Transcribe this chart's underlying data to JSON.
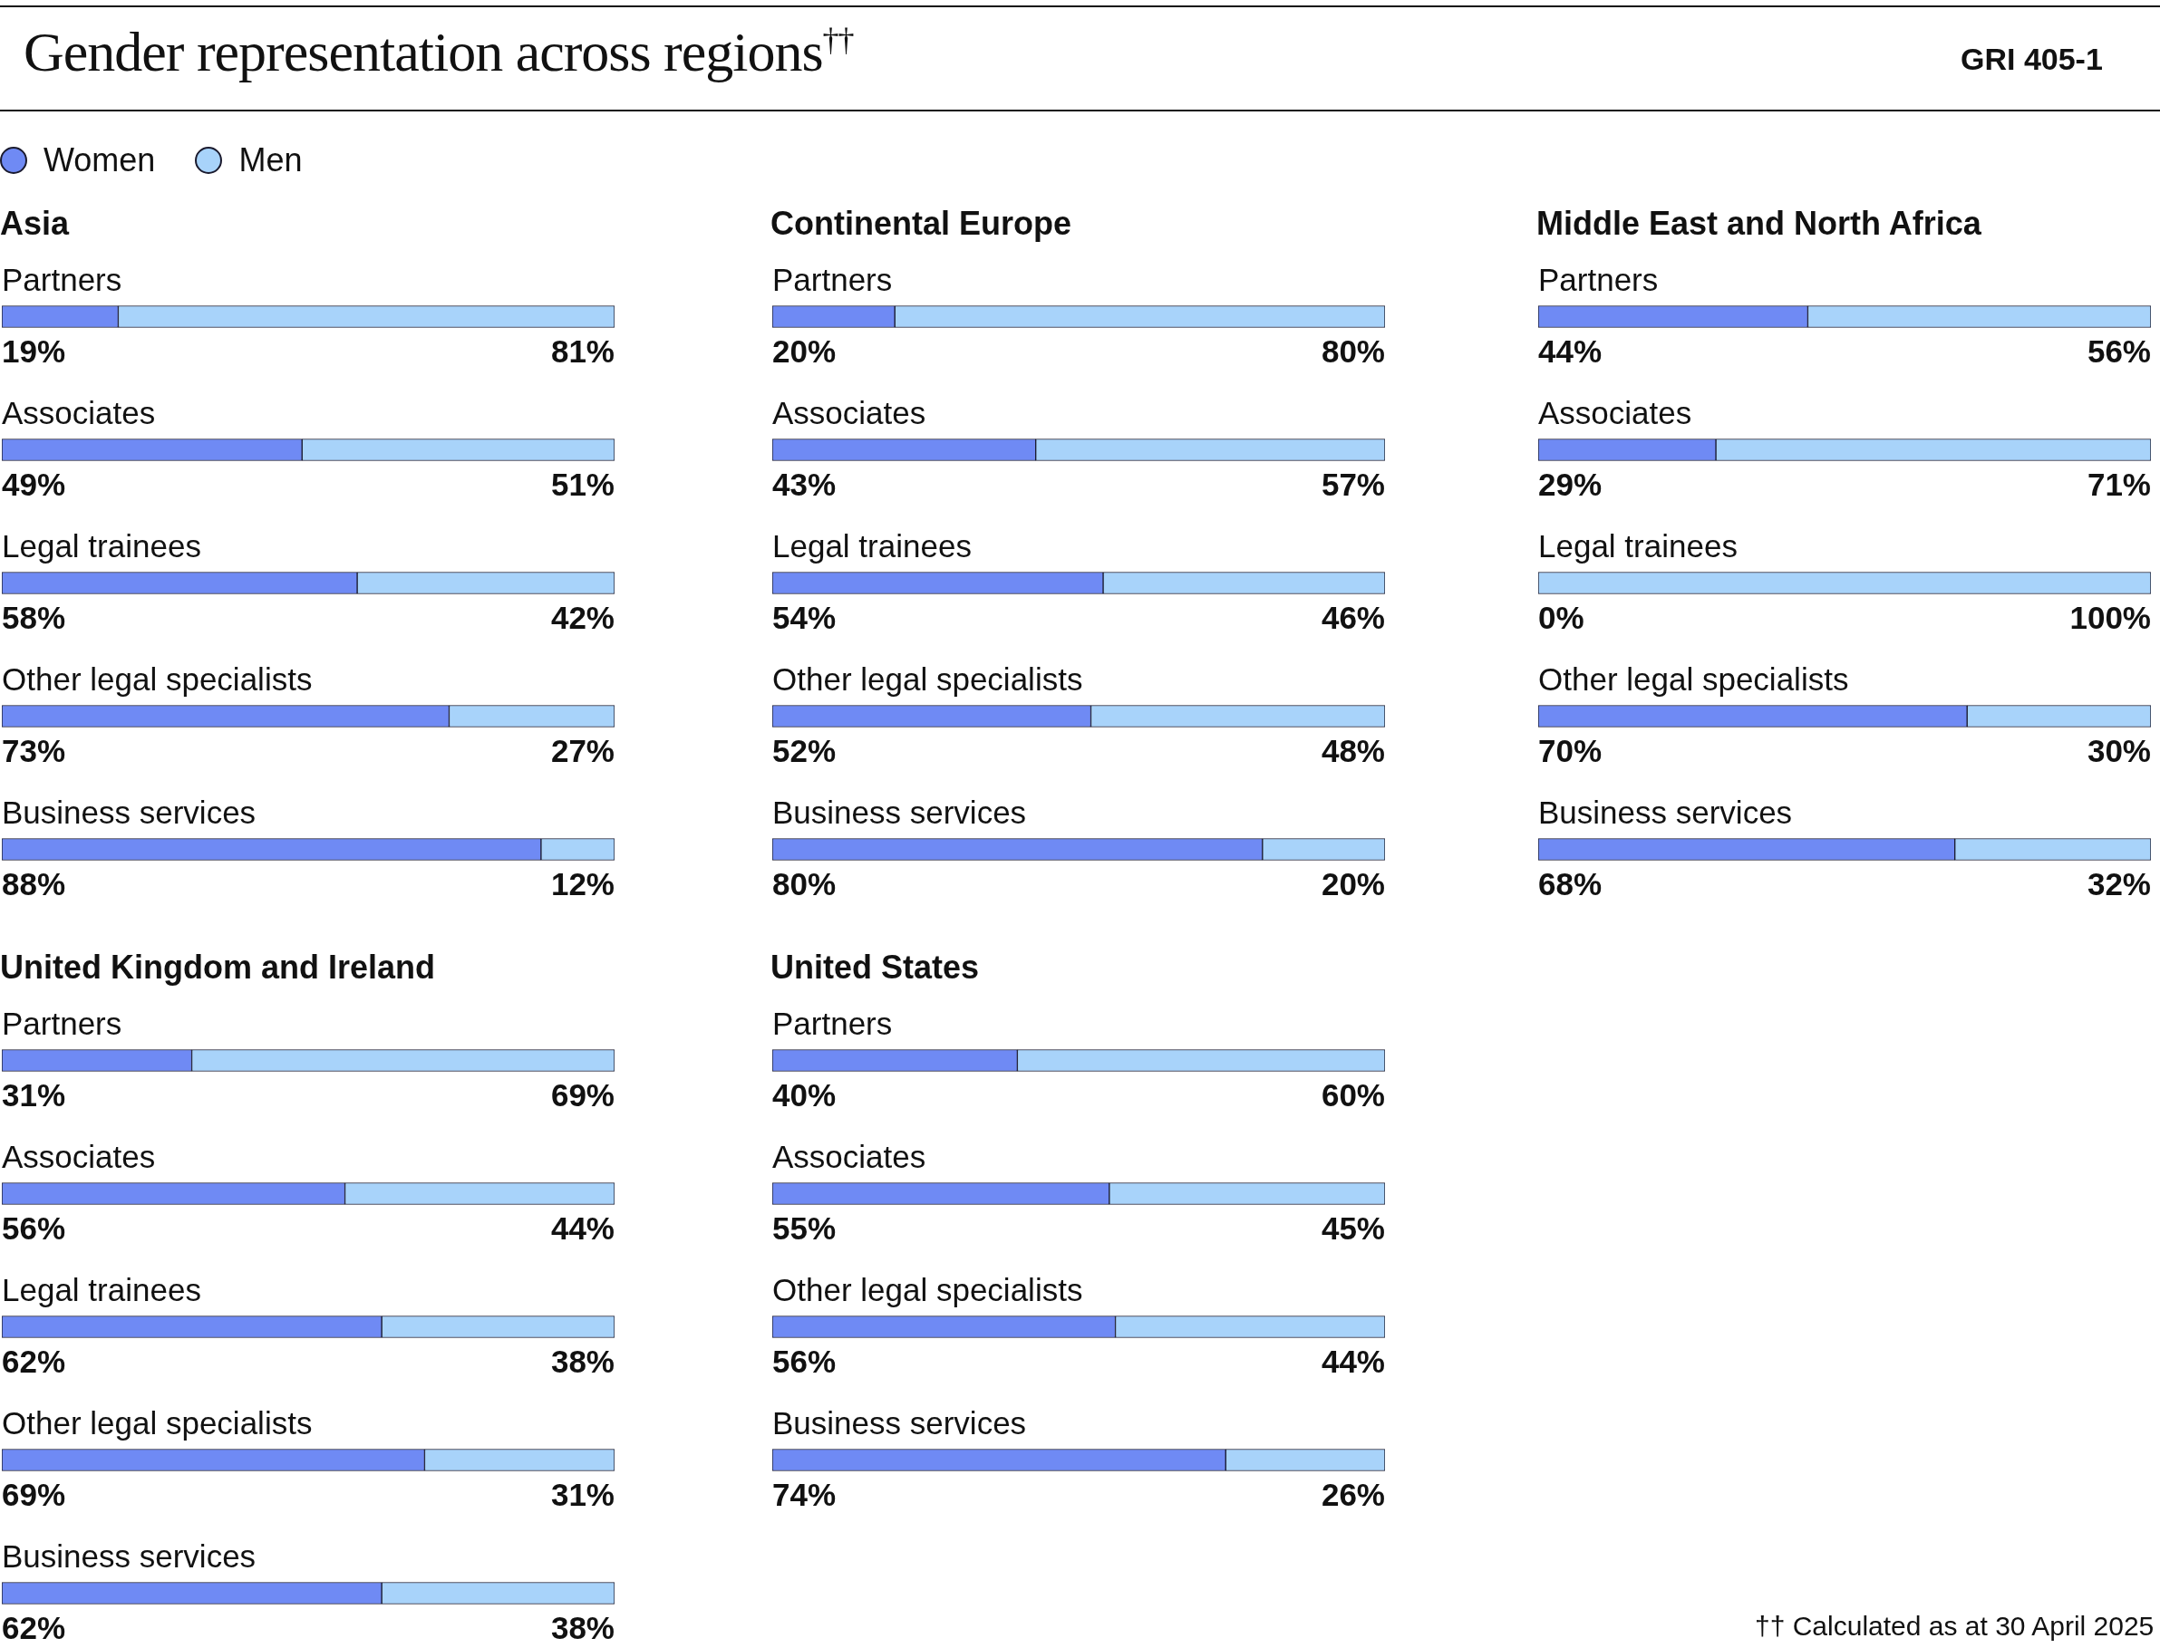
{
  "chart_data": [
    {
      "type": "bar",
      "orientation": "horizontal",
      "stacked": true,
      "title": "Asia",
      "legend": "top left",
      "tick_labels": "y",
      "xlim": [
        0,
        100
      ],
      "annotations": [
        "Gender representation across regions$^{††}$",
        "GRI 405-1",
        "†† Calculated as at 30 April 2025"
      ],
      "categories": [
        "Partners",
        "Associates",
        "Legal trainees",
        "Other legal specialists",
        "Business services"
      ],
      "series": [
        {
          "name": "Women",
          "color": "#6f8af4",
          "values": [
            19,
            49,
            58,
            73,
            88
          ],
          "value_labels": [
            "19%",
            "49%",
            "58%",
            "73%",
            "88%"
          ]
        },
        {
          "name": "Men",
          "color": "#a8d3fa",
          "values": [
            81,
            51,
            42,
            27,
            12
          ],
          "value_labels": [
            "81%",
            "51%",
            "42%",
            "27%",
            "12%"
          ]
        }
      ]
    },
    {
      "type": "bar",
      "orientation": "horizontal",
      "stacked": true,
      "title": "Continental Europe",
      "tick_labels": "y",
      "xlim": [
        0,
        100
      ],
      "categories": [
        "Partners",
        "Associates",
        "Legal trainees",
        "Other legal specialists",
        "Business services"
      ],
      "series": [
        {
          "color": "#6f8af4",
          "values": [
            20,
            43,
            54,
            52,
            80
          ],
          "value_labels": [
            "20%",
            "43%",
            "54%",
            "52%",
            "80%"
          ]
        },
        {
          "color": "#a8d3fa",
          "values": [
            80,
            57,
            46,
            48,
            20
          ],
          "value_labels": [
            "80%",
            "57%",
            "46%",
            "48%",
            "20%"
          ]
        }
      ]
    },
    {
      "type": "bar",
      "orientation": "horizontal",
      "stacked": true,
      "title": "Middle East and North Africa",
      "tick_labels": "y",
      "xlim": [
        0,
        100
      ],
      "categories": [
        "Partners",
        "Associates",
        "Legal trainees",
        "Other legal specialists",
        "Business services"
      ],
      "series": [
        {
          "color": "#6f8af4",
          "values": [
            44,
            29,
            0,
            70,
            68
          ],
          "value_labels": [
            "44%",
            "29%",
            "0%",
            "70%",
            "68%"
          ]
        },
        {
          "color": "#a8d3fa",
          "values": [
            56,
            71,
            100,
            30,
            32
          ],
          "value_labels": [
            "56%",
            "71%",
            "100%",
            "30%",
            "32%"
          ]
        }
      ]
    },
    {
      "type": "bar",
      "orientation": "horizontal",
      "stacked": true,
      "title": "United Kingdom and Ireland",
      "tick_labels": "y",
      "xlim": [
        0,
        100
      ],
      "categories": [
        "Partners",
        "Associates",
        "Legal trainees",
        "Other legal specialists",
        "Business services"
      ],
      "series": [
        {
          "color": "#6f8af4",
          "values": [
            31,
            56,
            62,
            69,
            62
          ],
          "value_labels": [
            "31%",
            "56%",
            "62%",
            "69%",
            "62%"
          ]
        },
        {
          "color": "#a8d3fa",
          "values": [
            69,
            44,
            38,
            31,
            38
          ],
          "value_labels": [
            "69%",
            "44%",
            "38%",
            "31%",
            "38%"
          ]
        }
      ]
    },
    {
      "type": "bar",
      "orientation": "horizontal",
      "stacked": true,
      "title": "United States",
      "tick_labels": "y",
      "xlim": [
        0,
        100
      ],
      "categories": [
        "Partners",
        "Associates",
        "Other legal specialists",
        "Business services"
      ],
      "series": [
        {
          "color": "#6f8af4",
          "values": [
            40,
            55,
            56,
            74
          ],
          "value_labels": [
            "40%",
            "55%",
            "56%",
            "74%"
          ]
        },
        {
          "color": "#a8d3fa",
          "values": [
            60,
            45,
            44,
            26
          ],
          "value_labels": [
            "60%",
            "45%",
            "44%",
            "26%"
          ]
        }
      ]
    }
  ]
}
